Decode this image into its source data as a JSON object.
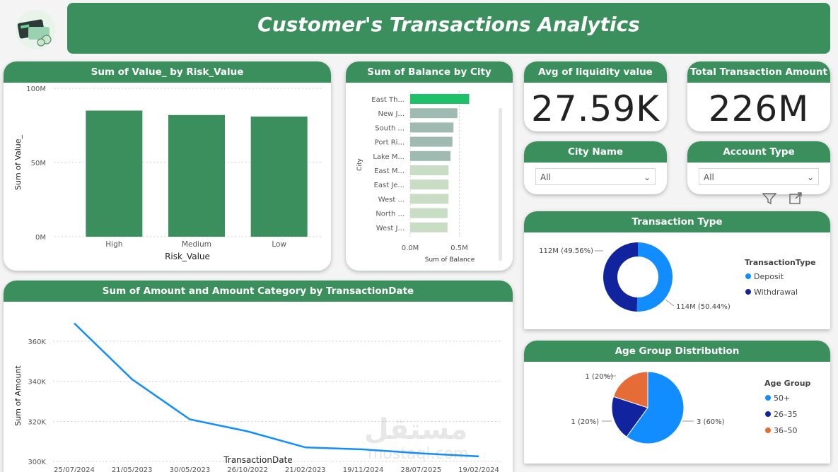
{
  "banner": {
    "title": "Customer's Transactions Analytics"
  },
  "risk_chart": {
    "title": "Sum of Value_ by Risk_Value",
    "chart_data": {
      "type": "bar",
      "categories": [
        "High",
        "Medium",
        "Low"
      ],
      "values": [
        85,
        82,
        81
      ],
      "ylabel": "Sum of Value_",
      "xlabel": "Risk_Value",
      "yticks": [
        "0M",
        "50M",
        "100M"
      ],
      "ylim": [
        0,
        100
      ],
      "color": "#3a8f5c"
    }
  },
  "city_chart": {
    "title": "Sum of Balance by City",
    "chart_data": {
      "type": "bar",
      "orientation": "horizontal",
      "categories": [
        "East Th...",
        "New J...",
        "South ...",
        "Port Ri...",
        "Lake M...",
        "East M...",
        "East Je...",
        "West ...",
        "North ...",
        "West J..."
      ],
      "values": [
        0.6,
        0.48,
        0.44,
        0.43,
        0.41,
        0.39,
        0.39,
        0.39,
        0.38,
        0.38
      ],
      "ylabel": "City",
      "xlabel": "Sum of Balance",
      "xticks": [
        "0.0M",
        "0.5M"
      ],
      "xlim": [
        0,
        0.87
      ],
      "highlight_color": "#1fc06a",
      "colors": [
        "#1fc06a",
        "#9fbab1",
        "#9fbab1",
        "#9fbab1",
        "#9fbab1",
        "#c9dcc4",
        "#c9dcc4",
        "#c9dcc4",
        "#c9dcc4",
        "#c9dcc4"
      ]
    }
  },
  "kpi_liquidity": {
    "title": "Avg of liquidity value",
    "value": "27.59K"
  },
  "kpi_total": {
    "title": "Total Transaction Amount",
    "value": "226M"
  },
  "slicer_city": {
    "title": "City Name",
    "value": "All"
  },
  "slicer_account": {
    "title": "Account Type",
    "value": "All"
  },
  "toolbar": {
    "filter_icon": "filter-icon",
    "focus_icon": "focus-mode-icon",
    "more_icon": "more-options-icon"
  },
  "transaction_type": {
    "title": "Transaction Type",
    "chart_data": {
      "type": "pie",
      "donut": true,
      "legend_title": "TransactionType",
      "slices": [
        {
          "name": "Deposit",
          "value": 114,
          "label": "114M (50.44%)",
          "color": "#118dff"
        },
        {
          "name": "Withdrawal",
          "value": 112,
          "label": "112M (49.56%)",
          "color": "#12239e"
        }
      ]
    }
  },
  "age_group": {
    "title": "Age Group Distribution",
    "chart_data": {
      "type": "pie",
      "legend_title": "Age Group",
      "slices": [
        {
          "name": "50+",
          "value": 3,
          "label": "3 (60%)",
          "color": "#118dff"
        },
        {
          "name": "26–35",
          "value": 1,
          "label": "1 (20%)",
          "color": "#12239e"
        },
        {
          "name": "36–50",
          "value": 1,
          "label": "1 (20%)",
          "color": "#e66c37"
        }
      ]
    }
  },
  "amount_chart": {
    "title": "Sum of Amount and Amount Category by TransactionDate",
    "chart_data": {
      "type": "line",
      "x": [
        "25/07/2024",
        "21/05/2023",
        "30/05/2023",
        "26/10/2022",
        "21/02/2023",
        "19/11/2024",
        "28/07/2025",
        "19/02/2024"
      ],
      "values": [
        369,
        341,
        321,
        315,
        307,
        306,
        304,
        302.5
      ],
      "ylabel": "Sum of Amount",
      "xlabel": "TransactionDate",
      "yticks": [
        "300K",
        "320K",
        "340K",
        "360K"
      ],
      "ylim": [
        300,
        372
      ],
      "color": "#118dff"
    }
  },
  "watermark": {
    "text": "مستقل",
    "domain": "mostaql.com"
  }
}
